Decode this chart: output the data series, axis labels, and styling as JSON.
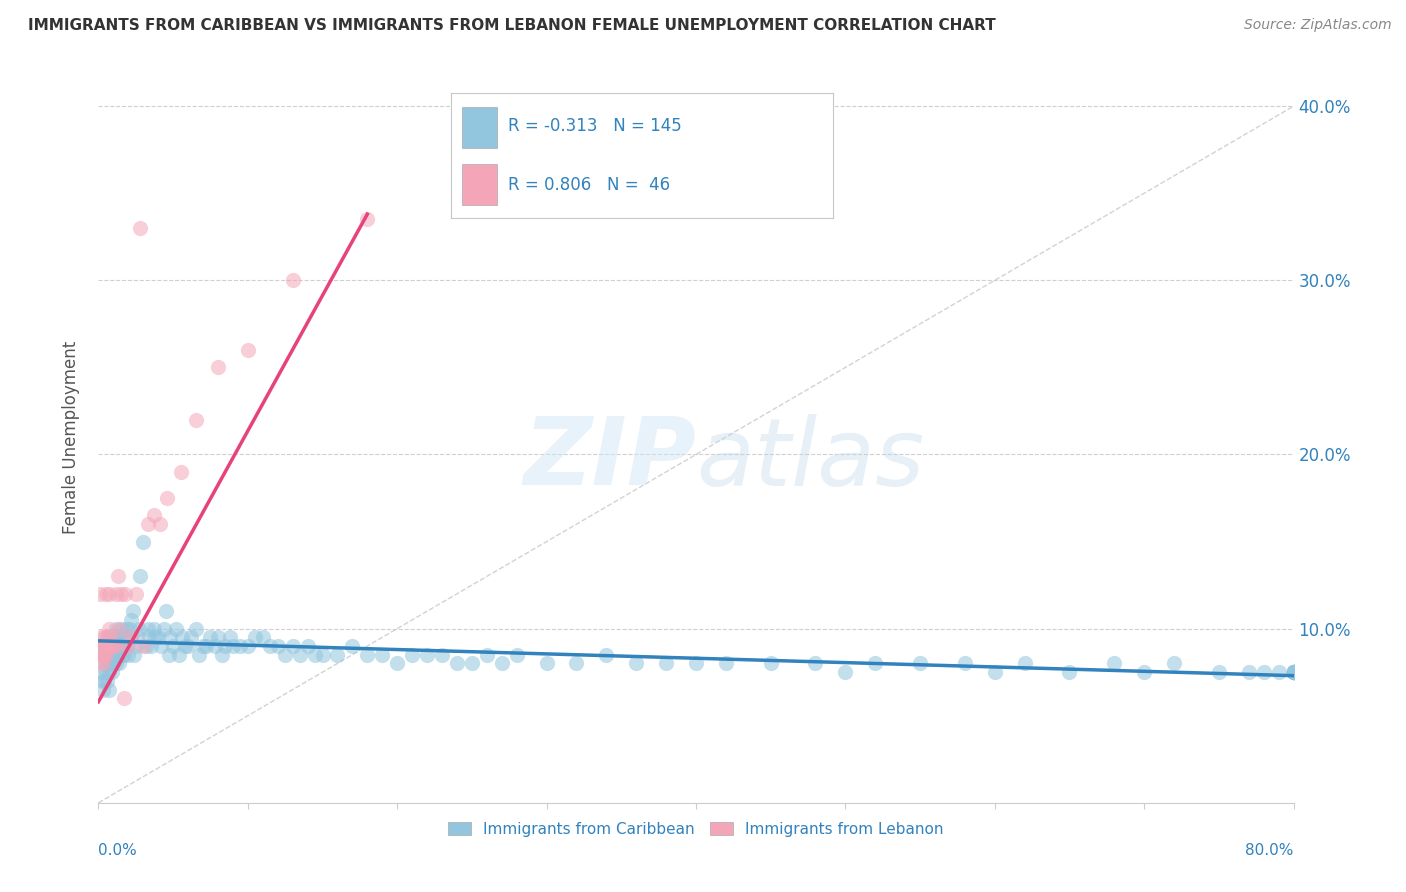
{
  "title": "IMMIGRANTS FROM CARIBBEAN VS IMMIGRANTS FROM LEBANON FEMALE UNEMPLOYMENT CORRELATION CHART",
  "source": "Source: ZipAtlas.com",
  "ylabel": "Female Unemployment",
  "watermark": "ZIPatlas",
  "legend1_r": "-0.313",
  "legend1_n": "145",
  "legend2_r": "0.806",
  "legend2_n": "46",
  "legend_label1": "Immigrants from Caribbean",
  "legend_label2": "Immigrants from Lebanon",
  "xlim": [
    0.0,
    0.8
  ],
  "ylim": [
    0.0,
    0.42
  ],
  "yticks": [
    0.1,
    0.2,
    0.3,
    0.4
  ],
  "color_blue": "#92c5de",
  "color_pink": "#f4a6b8",
  "color_blue_line": "#3182bd",
  "color_pink_line": "#e8427a",
  "color_text_blue": "#3182bd",
  "background": "#ffffff",
  "caribbean_x": [
    0.002,
    0.003,
    0.003,
    0.004,
    0.004,
    0.005,
    0.005,
    0.005,
    0.006,
    0.006,
    0.006,
    0.007,
    0.007,
    0.007,
    0.008,
    0.008,
    0.009,
    0.009,
    0.01,
    0.01,
    0.01,
    0.011,
    0.011,
    0.012,
    0.012,
    0.013,
    0.013,
    0.014,
    0.014,
    0.015,
    0.015,
    0.016,
    0.016,
    0.017,
    0.017,
    0.018,
    0.018,
    0.019,
    0.019,
    0.02,
    0.021,
    0.022,
    0.022,
    0.023,
    0.024,
    0.025,
    0.026,
    0.027,
    0.028,
    0.03,
    0.032,
    0.033,
    0.034,
    0.035,
    0.037,
    0.038,
    0.04,
    0.042,
    0.044,
    0.045,
    0.047,
    0.048,
    0.05,
    0.052,
    0.054,
    0.056,
    0.058,
    0.06,
    0.062,
    0.065,
    0.067,
    0.07,
    0.072,
    0.075,
    0.078,
    0.08,
    0.083,
    0.085,
    0.088,
    0.09,
    0.095,
    0.1,
    0.105,
    0.11,
    0.115,
    0.12,
    0.125,
    0.13,
    0.135,
    0.14,
    0.145,
    0.15,
    0.16,
    0.17,
    0.18,
    0.19,
    0.2,
    0.21,
    0.22,
    0.23,
    0.24,
    0.25,
    0.26,
    0.27,
    0.28,
    0.3,
    0.32,
    0.34,
    0.36,
    0.38,
    0.4,
    0.42,
    0.45,
    0.48,
    0.5,
    0.52,
    0.55,
    0.58,
    0.6,
    0.62,
    0.65,
    0.68,
    0.7,
    0.72,
    0.75,
    0.77,
    0.78,
    0.79,
    0.8,
    0.8,
    0.8,
    0.8,
    0.8,
    0.8,
    0.8,
    0.8,
    0.8,
    0.8,
    0.8,
    0.8,
    0.8,
    0.8,
    0.8,
    0.8,
    0.8
  ],
  "caribbean_y": [
    0.075,
    0.065,
    0.07,
    0.07,
    0.085,
    0.08,
    0.09,
    0.075,
    0.08,
    0.07,
    0.095,
    0.065,
    0.085,
    0.075,
    0.09,
    0.08,
    0.085,
    0.075,
    0.09,
    0.08,
    0.095,
    0.085,
    0.095,
    0.1,
    0.08,
    0.09,
    0.085,
    0.095,
    0.08,
    0.09,
    0.095,
    0.1,
    0.085,
    0.09,
    0.085,
    0.095,
    0.09,
    0.09,
    0.1,
    0.085,
    0.1,
    0.095,
    0.105,
    0.11,
    0.085,
    0.09,
    0.095,
    0.1,
    0.13,
    0.15,
    0.09,
    0.1,
    0.095,
    0.09,
    0.1,
    0.095,
    0.095,
    0.09,
    0.1,
    0.11,
    0.085,
    0.095,
    0.09,
    0.1,
    0.085,
    0.095,
    0.09,
    0.09,
    0.095,
    0.1,
    0.085,
    0.09,
    0.09,
    0.095,
    0.09,
    0.095,
    0.085,
    0.09,
    0.095,
    0.09,
    0.09,
    0.09,
    0.095,
    0.095,
    0.09,
    0.09,
    0.085,
    0.09,
    0.085,
    0.09,
    0.085,
    0.085,
    0.085,
    0.09,
    0.085,
    0.085,
    0.08,
    0.085,
    0.085,
    0.085,
    0.08,
    0.08,
    0.085,
    0.08,
    0.085,
    0.08,
    0.08,
    0.085,
    0.08,
    0.08,
    0.08,
    0.08,
    0.08,
    0.08,
    0.075,
    0.08,
    0.08,
    0.08,
    0.075,
    0.08,
    0.075,
    0.08,
    0.075,
    0.08,
    0.075,
    0.075,
    0.075,
    0.075,
    0.075,
    0.075,
    0.075,
    0.075,
    0.075,
    0.075,
    0.075,
    0.075,
    0.075,
    0.075,
    0.075,
    0.075,
    0.075,
    0.075,
    0.075,
    0.075,
    0.075
  ],
  "lebanon_x": [
    0.001,
    0.001,
    0.002,
    0.002,
    0.002,
    0.002,
    0.003,
    0.003,
    0.003,
    0.003,
    0.004,
    0.004,
    0.004,
    0.005,
    0.005,
    0.005,
    0.006,
    0.006,
    0.007,
    0.007,
    0.008,
    0.008,
    0.009,
    0.01,
    0.011,
    0.012,
    0.013,
    0.014,
    0.015,
    0.017,
    0.018,
    0.02,
    0.022,
    0.025,
    0.028,
    0.03,
    0.033,
    0.037,
    0.041,
    0.046,
    0.055,
    0.065,
    0.08,
    0.1,
    0.13,
    0.18
  ],
  "lebanon_y": [
    0.12,
    0.09,
    0.08,
    0.085,
    0.09,
    0.095,
    0.09,
    0.085,
    0.08,
    0.09,
    0.085,
    0.09,
    0.095,
    0.09,
    0.085,
    0.12,
    0.09,
    0.095,
    0.12,
    0.1,
    0.095,
    0.09,
    0.09,
    0.09,
    0.09,
    0.12,
    0.13,
    0.1,
    0.12,
    0.06,
    0.12,
    0.09,
    0.095,
    0.12,
    0.33,
    0.09,
    0.16,
    0.165,
    0.16,
    0.175,
    0.19,
    0.22,
    0.25,
    0.26,
    0.3,
    0.335
  ],
  "blue_trend_x": [
    0.0,
    0.8
  ],
  "blue_trend_y": [
    0.093,
    0.073
  ],
  "pink_trend_x": [
    0.0,
    0.18
  ],
  "pink_trend_y": [
    0.058,
    0.338
  ]
}
